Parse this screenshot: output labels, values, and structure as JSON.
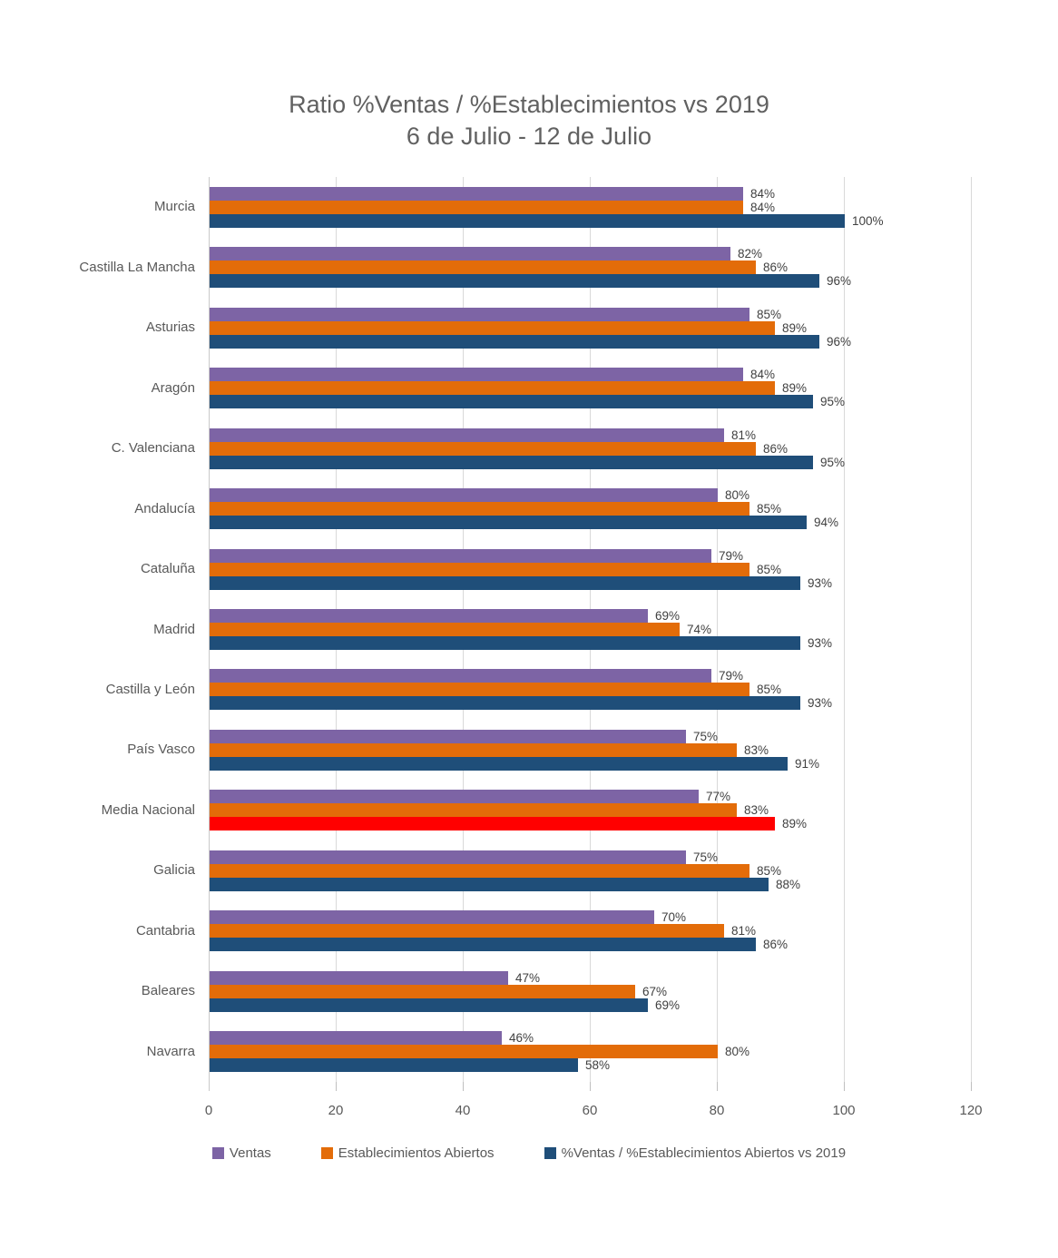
{
  "chart_data": {
    "type": "bar",
    "orientation": "horizontal",
    "title": "Ratio %Ventas / %Establecimientos  vs 2019",
    "subtitle": "6 de Julio - 12 de Julio",
    "xlabel": "",
    "ylabel": "",
    "xlim": [
      0,
      120
    ],
    "x_ticks": [
      0,
      20,
      40,
      60,
      80,
      100,
      120
    ],
    "grid": true,
    "legend_position": "bottom",
    "value_suffix": "%",
    "categories": [
      "Murcia",
      "Castilla La Mancha",
      "Asturias",
      "Aragón",
      "C. Valenciana",
      "Andalucía",
      "Cataluña",
      "Madrid",
      "Castilla y León",
      "País Vasco",
      "Media Nacional",
      "Galicia",
      "Cantabria",
      "Baleares",
      "Navarra"
    ],
    "series": [
      {
        "name": "Ventas",
        "color": "#7D64A5",
        "values": [
          84,
          82,
          85,
          84,
          81,
          80,
          79,
          69,
          79,
          75,
          77,
          75,
          70,
          47,
          46
        ]
      },
      {
        "name": "Establecimientos Abiertos",
        "color": "#E36C09",
        "values": [
          84,
          86,
          89,
          89,
          86,
          85,
          85,
          74,
          85,
          83,
          83,
          85,
          81,
          67,
          80
        ]
      },
      {
        "name": "%Ventas / %Establecimientos Abiertos vs 2019",
        "color": "#1F4E79",
        "values": [
          100,
          96,
          96,
          95,
          95,
          94,
          93,
          93,
          93,
          91,
          89,
          88,
          86,
          69,
          58
        ]
      }
    ],
    "highlight": {
      "category": "Media Nacional",
      "series_name": "%Ventas / %Establecimientos Abiertos vs 2019",
      "series_index": 2,
      "color": "#FF0000"
    }
  },
  "colors": {
    "background": "#FFFFFF",
    "gridline": "#D9D9D9",
    "axis_tick": "#BFBFBF",
    "title_text": "#616161",
    "value_label_text": "#404040",
    "axis_label_text": "#595959"
  }
}
